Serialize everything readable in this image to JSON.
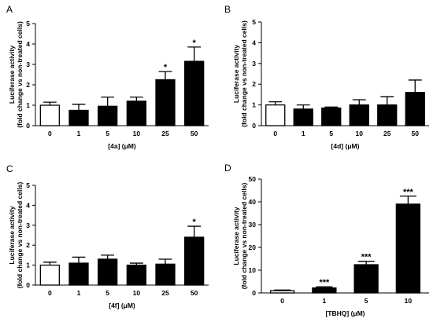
{
  "chart_data": [
    {
      "type": "bar",
      "panel_letter": "A",
      "categories": [
        "0",
        "1",
        "5",
        "10",
        "25",
        "50"
      ],
      "values": [
        1.0,
        0.75,
        0.95,
        1.2,
        2.25,
        3.15
      ],
      "errors": [
        0.15,
        0.3,
        0.45,
        0.2,
        0.4,
        0.7
      ],
      "significance": [
        "",
        "",
        "",
        "",
        "*",
        "*"
      ],
      "fills": [
        "#ffffff",
        "#000000",
        "#000000",
        "#000000",
        "#000000",
        "#000000"
      ],
      "ylabel_line1": "Luciferase activity",
      "ylabel_line2": "(fold change vs non-treated cells)",
      "xlabel": "[4a] (μM)",
      "ylim": [
        0,
        5
      ],
      "yticks": [
        "0",
        "1",
        "2",
        "3",
        "4",
        "5"
      ]
    },
    {
      "type": "bar",
      "panel_letter": "B",
      "categories": [
        "0",
        "1",
        "5",
        "10",
        "25",
        "50"
      ],
      "values": [
        1.0,
        0.8,
        0.85,
        1.0,
        1.0,
        1.6
      ],
      "errors": [
        0.15,
        0.2,
        0.05,
        0.25,
        0.4,
        0.6
      ],
      "significance": [
        "",
        "",
        "",
        "",
        "",
        ""
      ],
      "fills": [
        "#ffffff",
        "#000000",
        "#000000",
        "#000000",
        "#000000",
        "#000000"
      ],
      "ylabel_line1": "Luciferase activity",
      "ylabel_line2": "(fold change vs non-treated cells)",
      "xlabel": "[4d] (μM)",
      "ylim": [
        0,
        5
      ],
      "yticks": [
        "0",
        "1",
        "2",
        "3",
        "4",
        "5"
      ]
    },
    {
      "type": "bar",
      "panel_letter": "C",
      "categories": [
        "0",
        "1",
        "5",
        "10",
        "25",
        "50"
      ],
      "values": [
        1.0,
        1.1,
        1.3,
        1.0,
        1.05,
        2.4
      ],
      "errors": [
        0.15,
        0.3,
        0.2,
        0.1,
        0.25,
        0.55
      ],
      "significance": [
        "",
        "",
        "",
        "",
        "",
        "*"
      ],
      "fills": [
        "#ffffff",
        "#000000",
        "#000000",
        "#000000",
        "#000000",
        "#000000"
      ],
      "ylabel_line1": "Luciferase activity",
      "ylabel_line2": "(fold change vs non-treated cells)",
      "xlabel": "[4f] (μM)",
      "ylim": [
        0,
        5
      ],
      "yticks": [
        "0",
        "1",
        "2",
        "3",
        "4",
        "5"
      ]
    },
    {
      "type": "bar",
      "panel_letter": "D",
      "categories": [
        "0",
        "1",
        "5",
        "10"
      ],
      "values": [
        1.0,
        2.2,
        12.4,
        39.0
      ],
      "errors": [
        0.3,
        0.5,
        1.5,
        3.5
      ],
      "significance": [
        "",
        "***",
        "***",
        "***"
      ],
      "fills": [
        "#ffffff",
        "#000000",
        "#000000",
        "#000000"
      ],
      "ylabel_line1": "Luciferase activity",
      "ylabel_line2": "(fold change vs non-treated cells)",
      "xlabel": "[TBHQ] (μM)",
      "ylim": [
        0,
        50
      ],
      "yticks": [
        "0",
        "10",
        "20",
        "30",
        "40",
        "50"
      ]
    }
  ]
}
